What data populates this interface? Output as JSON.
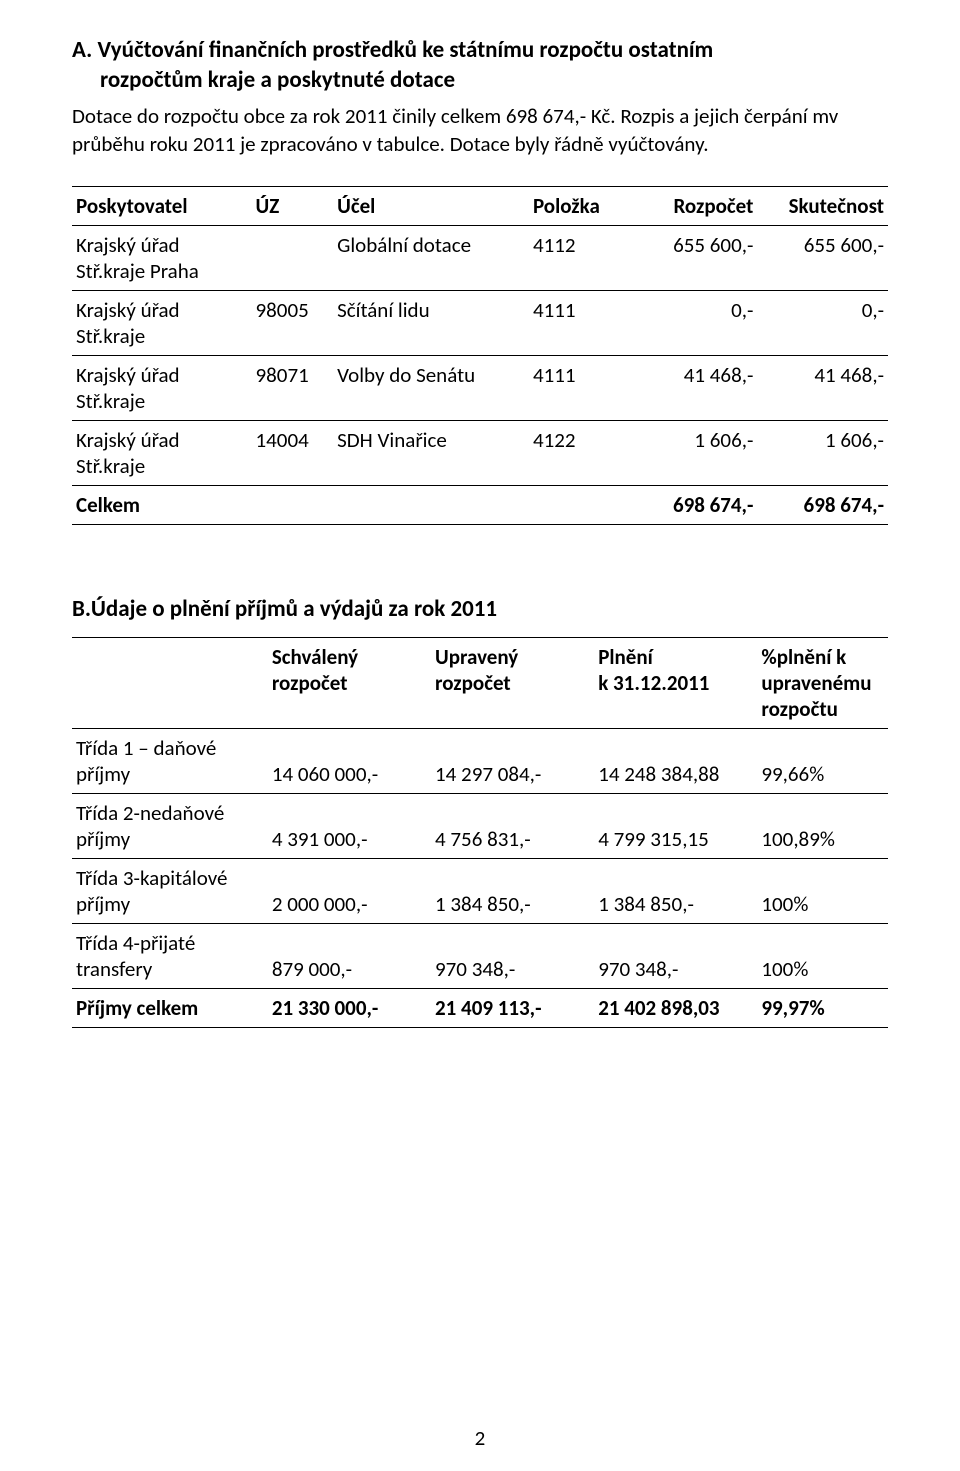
{
  "sectionA": {
    "heading_line1": "A. Vyúčtování finančních prostředků ke státnímu rozpočtu ostatním",
    "heading_line2": "rozpočtům kraje a poskytnuté dotace",
    "paragraph": "Dotace do rozpočtu obce za rok 2011 činily celkem 698 674,- Kč. Rozpis a jejich čerpání mv průběhu roku 2011 je zpracováno v tabulce. Dotace byly řádně vyúčtovány."
  },
  "table1": {
    "headers": [
      "Poskytovatel",
      "ÚZ",
      "Účel",
      "Položka",
      "Rozpočet",
      "Skutečnost"
    ],
    "rows": [
      {
        "c1a": "Krajský úřad",
        "c1b": "Stř.kraje Praha",
        "c2": "",
        "c3": "Globální dotace",
        "c4": "4112",
        "c5": "655 600,-",
        "c6": "655 600,-"
      },
      {
        "c1a": "Krajský úřad",
        "c1b": "Stř.kraje",
        "c2": "98005",
        "c3": "Sčítání lidu",
        "c4": "4111",
        "c5": "0,-",
        "c6": "0,-"
      },
      {
        "c1a": "Krajský úřad",
        "c1b": "Stř.kraje",
        "c2": "98071",
        "c3": "Volby do Senátu",
        "c4": "4111",
        "c5": "41 468,-",
        "c6": "41 468,-"
      },
      {
        "c1a": "Krajský úřad",
        "c1b": "Stř.kraje",
        "c2": "14004",
        "c3": "SDH Vinařice",
        "c4": "4122",
        "c5": "1 606,-",
        "c6": "1 606,-"
      }
    ],
    "total_label": "Celkem",
    "total_c5": "698 674,-",
    "total_c6": "698 674,-"
  },
  "sectionB": {
    "heading": "B.Údaje o plnění příjmů a výdajů za rok 2011"
  },
  "table2": {
    "headers": {
      "h1a": "Schválený",
      "h1b": "rozpočet",
      "h2a": "Upravený",
      "h2b": "rozpočet",
      "h3a": "Plnění",
      "h3b": "k 31.12.2011",
      "h4a": "%plnění k upravenému",
      "h4b": "rozpočtu"
    },
    "rows": [
      {
        "la": "Třída 1 – daňové",
        "lb": "příjmy",
        "c2": "14 060 000,-",
        "c3": "14 297 084,-",
        "c4": "14 248 384,88",
        "c5": "99,66%"
      },
      {
        "la": "Třída 2-nedaňové",
        "lb": "příjmy",
        "c2": "4 391 000,-",
        "c3": "4 756 831,-",
        "c4": "4 799 315,15",
        "c5": "100,89%"
      },
      {
        "la": "Třída 3-kapitálové",
        "lb": "příjmy",
        "c2": "2 000 000,-",
        "c3": "1 384 850,-",
        "c4": "1 384 850,-",
        "c5": "100%"
      },
      {
        "la": "Třída 4-přijaté",
        "lb": "transfery",
        "c2": "879 000,-",
        "c3": "970 348,-",
        "c4": "970 348,-",
        "c5": "100%"
      }
    ],
    "total_label": "Příjmy celkem",
    "total_c2": "21 330 000,-",
    "total_c3": "21 409 113,-",
    "total_c4": "21 402 898,03",
    "total_c5": "99,97%"
  },
  "page_number": "2"
}
